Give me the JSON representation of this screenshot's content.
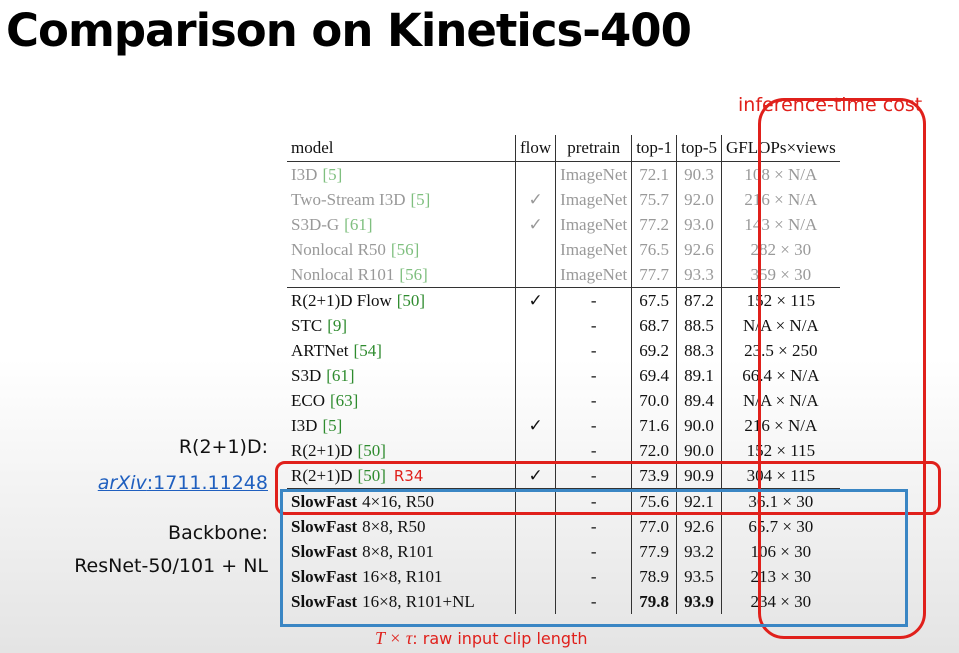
{
  "header": {
    "title": "Comparison on Kinetics-400",
    "cost_note": "inference-time cost"
  },
  "table": {
    "columns": [
      "model",
      "flow",
      "pretrain",
      "top-1",
      "top-5",
      "GFLOPs×views"
    ],
    "rows": [
      {
        "muted": true,
        "name": "I3D",
        "ref": "[5]",
        "pretrain": "ImageNet",
        "top1": "72.1",
        "top5": "90.3",
        "cost": "108 × N/A"
      },
      {
        "muted": true,
        "name": "Two-Stream I3D",
        "ref": "[5]",
        "flow": "✓",
        "pretrain": "ImageNet",
        "top1": "75.7",
        "top5": "92.0",
        "cost": "216 × N/A"
      },
      {
        "muted": true,
        "name": "S3D-G",
        "ref": "[61]",
        "flow": "✓",
        "pretrain": "ImageNet",
        "top1": "77.2",
        "top5": "93.0",
        "cost": "143 × N/A"
      },
      {
        "muted": true,
        "name": "Nonlocal R50",
        "ref": "[56]",
        "pretrain": "ImageNet",
        "top1": "76.5",
        "top5": "92.6",
        "cost": "282 × 30"
      },
      {
        "muted": true,
        "name": "Nonlocal R101",
        "ref": "[56]",
        "pretrain": "ImageNet",
        "top1": "77.7",
        "top5": "93.3",
        "cost": "359 × 30"
      },
      {
        "name": "R(2+1)D Flow",
        "ref": "[50]",
        "flow": "✓",
        "pretrain": "-",
        "top1": "67.5",
        "top5": "87.2",
        "cost": "152 × 115"
      },
      {
        "name": "STC",
        "ref": "[9]",
        "pretrain": "-",
        "top1": "68.7",
        "top5": "88.5",
        "cost": "N/A × N/A"
      },
      {
        "name": "ARTNet",
        "ref": "[54]",
        "pretrain": "-",
        "top1": "69.2",
        "top5": "88.3",
        "cost": "23.5 × 250"
      },
      {
        "name": "S3D",
        "ref": "[61]",
        "pretrain": "-",
        "top1": "69.4",
        "top5": "89.1",
        "cost": "66.4 × N/A"
      },
      {
        "name": "ECO",
        "ref": "[63]",
        "pretrain": "-",
        "top1": "70.0",
        "top5": "89.4",
        "cost": "N/A × N/A"
      },
      {
        "name": "I3D",
        "ref": "[5]",
        "flow": "✓",
        "pretrain": "-",
        "top1": "71.6",
        "top5": "90.0",
        "cost": "216 × N/A"
      },
      {
        "name": "R(2+1)D",
        "ref": "[50]",
        "pretrain": "-",
        "top1": "72.0",
        "top5": "90.0",
        "cost": "152 × 115"
      },
      {
        "name": "R(2+1)D",
        "ref": "[50]",
        "note": "R34",
        "flow": "✓",
        "pretrain": "-",
        "top1": "73.9",
        "top5": "90.9",
        "cost": "304 × 115"
      },
      {
        "name": "SlowFast",
        "config": "4×16, R50",
        "pretrain": "-",
        "top1": "75.6",
        "top5": "92.1",
        "cost": "36.1 × 30"
      },
      {
        "name": "SlowFast",
        "config": "8×8, R50",
        "pretrain": "-",
        "top1": "77.0",
        "top5": "92.6",
        "cost": "65.7 × 30"
      },
      {
        "name": "SlowFast",
        "config": "8×8, R101",
        "pretrain": "-",
        "top1": "77.9",
        "top5": "93.2",
        "cost": "106 × 30"
      },
      {
        "name": "SlowFast",
        "config": "16×8, R101",
        "pretrain": "-",
        "top1": "78.9",
        "top5": "93.5",
        "cost": "213 × 30"
      },
      {
        "name": "SlowFast",
        "config": "16×8, R101+NL",
        "pretrain": "-",
        "top1": "79.8",
        "top5": "93.9",
        "cost": "234 × 30",
        "bold": [
          "top1",
          "top5"
        ]
      }
    ]
  },
  "annotations": {
    "r21d": "R(2+1)D:",
    "arxiv_prefix": "arXiv",
    "arxiv_id": ":1711.11248",
    "backbone": "Backbone:",
    "backbone_detail": "ResNet-50/101 + NL",
    "clip_symbol": "T × τ",
    "clip_text": ": raw input clip length"
  }
}
